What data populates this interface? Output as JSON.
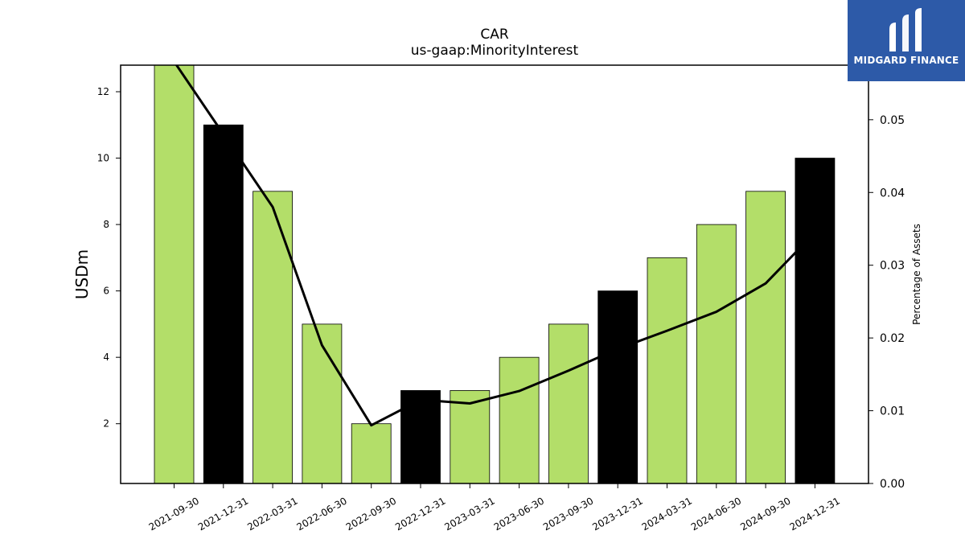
{
  "chart_data": {
    "type": "bar",
    "title": "CAR",
    "subtitle": "us-gaap:MinorityInterest",
    "ylabel": "USDm",
    "y2label": "Percentage of Assets",
    "categories": [
      "2021-09-30",
      "2021-12-31",
      "2022-03-31",
      "2022-06-30",
      "2022-09-30",
      "2022-12-31",
      "2023-03-31",
      "2023-06-30",
      "2023-09-30",
      "2023-12-31",
      "2024-03-31",
      "2024-06-30",
      "2024-09-30",
      "2024-12-31"
    ],
    "series": [
      {
        "type": "bar",
        "values": [
          13,
          11,
          9,
          5,
          2,
          3,
          3,
          4,
          5,
          6,
          7,
          8,
          9,
          10
        ],
        "colors": [
          "#b3de69",
          "#000000",
          "#b3de69",
          "#b3de69",
          "#b3de69",
          "#000000",
          "#b3de69",
          "#b3de69",
          "#b3de69",
          "#000000",
          "#b3de69",
          "#b3de69",
          "#b3de69",
          "#000000"
        ]
      },
      {
        "type": "line",
        "axis": "right",
        "values": [
          0.058,
          0.048,
          0.038,
          0.019,
          0.008,
          0.0115,
          0.011,
          0.0127,
          0.0155,
          0.0185,
          0.021,
          0.0236,
          0.0275,
          0.0345
        ],
        "color": "#000000"
      }
    ],
    "ylim": [
      0.2,
      12.8
    ],
    "yticks": [
      2,
      4,
      6,
      8,
      10,
      12
    ],
    "y2lim": [
      0,
      0.0575
    ],
    "y2ticks": [
      "0.00",
      "0.01",
      "0.02",
      "0.03",
      "0.04",
      "0.05"
    ],
    "grid": false
  },
  "logo": {
    "text": "MIDGARD FINANCE",
    "bg": "#2d5aa8"
  }
}
